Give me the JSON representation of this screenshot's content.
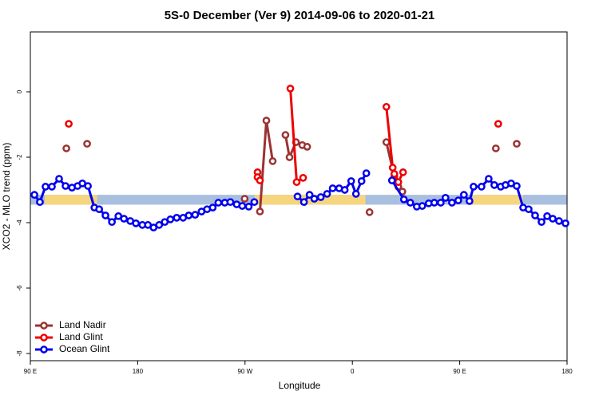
{
  "chart_data": {
    "type": "line",
    "title": "5S-0 December (Ver 9)   2014-09-06 to 2020-01-21",
    "x_label": "Longitude",
    "y_label": "XCO2 - MLO trend (ppm)",
    "xlim": [
      90,
      540
    ],
    "ylim": [
      -8.22,
      1.83
    ],
    "xticks": [
      {
        "value": 90,
        "label": "90 E"
      },
      180,
      {
        "value": 270,
        "label": "90 W"
      },
      {
        "value": 360,
        "label": "0"
      },
      {
        "value": 450,
        "label": "90 E"
      },
      {
        "value": 540,
        "label": "180"
      }
    ],
    "yticks": [
      0,
      -2,
      -4,
      -6,
      -8
    ],
    "legend": "bottom-left",
    "band": {
      "ylim": [
        -3.45,
        -3.15
      ],
      "color": "#a8bfe0",
      "land_color": "#f5d57e",
      "land_x": [
        [
          102,
          146
        ],
        [
          278,
          371
        ],
        [
          461,
          503
        ]
      ]
    },
    "series": [
      {
        "name": "Land Nadir",
        "color": "#9b3333",
        "x": [
          120.2,
          null,
          137.6,
          null,
          269.7,
          null,
          282.5,
          287.9,
          293.2,
          null,
          303.9,
          307.3,
          312.7,
          318,
          322.1,
          null,
          374.4,
          null,
          388.5,
          395.2,
          398.5,
          401.9,
          null,
          480.3,
          null,
          497.8
        ],
        "values": [
          -1.73,
          null,
          -1.59,
          null,
          -3.27,
          null,
          -3.66,
          -0.88,
          -2.12,
          null,
          -1.32,
          -2,
          -1.54,
          -1.63,
          -1.68,
          null,
          -3.68,
          null,
          -1.54,
          -2.59,
          -2.9,
          -3.05,
          null,
          -1.73,
          null,
          -1.59
        ]
      },
      {
        "name": "Land Glint",
        "color": "#ee0000",
        "x": [
          122.2,
          null,
          280.5,
          280.5,
          282.5,
          null,
          308,
          313.3,
          318.7,
          null,
          388.5,
          393.8,
          395.2,
          398.5,
          402.5,
          null,
          482.3
        ],
        "values": [
          -0.98,
          null,
          -2.46,
          -2.61,
          -2.71,
          null,
          0.1,
          -2.76,
          -2.63,
          null,
          -0.46,
          -2.32,
          -2.51,
          -2.76,
          -2.46,
          null,
          -0.98
        ]
      },
      {
        "name": "Ocean Glint",
        "color": "#0000ee",
        "x": [
          93.4,
          98,
          102.7,
          108.1,
          114.1,
          119.5,
          124.9,
          129.6,
          133.6,
          138.3,
          143.7,
          147.7,
          153,
          158.4,
          163.8,
          168.5,
          173.8,
          178.5,
          183.9,
          188.6,
          193.3,
          198,
          202.7,
          207.4,
          212.7,
          218.1,
          222.8,
          228.2,
          233.5,
          238.2,
          242.9,
          247.6,
          253,
          257.7,
          263,
          267.7,
          273.1,
          277.8,
          null,
          314,
          319.4,
          324.1,
          328.1,
          333.5,
          338.8,
          343.5,
          348.9,
          353.6,
          359,
          363,
          367.7,
          371.7,
          null,
          393.2,
          403.2,
          408.6,
          414,
          418.6,
          424,
          428.7,
          434.1,
          438.1,
          443.5,
          448.8,
          453.5,
          458.2,
          461.6,
          468.3,
          474.3,
          479,
          484.4,
          488.4,
          493.1,
          497.8,
          503.2,
          507.8,
          513.2,
          518.6,
          523.3,
          528,
          533.3,
          538.7
        ],
        "values": [
          -3.15,
          -3.37,
          -2.9,
          -2.9,
          -2.66,
          -2.88,
          -2.93,
          -2.88,
          -2.8,
          -2.88,
          -3.54,
          -3.59,
          -3.78,
          -3.98,
          -3.8,
          -3.88,
          -3.95,
          -4.02,
          -4.07,
          -4.07,
          -4.15,
          -4.07,
          -3.98,
          -3.9,
          -3.85,
          -3.85,
          -3.78,
          -3.76,
          -3.66,
          -3.59,
          -3.54,
          -3.39,
          -3.39,
          -3.37,
          -3.44,
          -3.49,
          -3.51,
          -3.37,
          null,
          -3.2,
          -3.37,
          -3.15,
          -3.27,
          -3.22,
          -3.12,
          -2.95,
          -2.95,
          -3,
          -2.73,
          -3.12,
          -2.73,
          -2.49,
          null,
          -2.71,
          -3.29,
          -3.39,
          -3.51,
          -3.49,
          -3.41,
          -3.39,
          -3.39,
          -3.24,
          -3.39,
          -3.32,
          -3.15,
          -3.34,
          -2.9,
          -2.9,
          -2.66,
          -2.85,
          -2.9,
          -2.85,
          -2.8,
          -2.88,
          -3.54,
          -3.59,
          -3.78,
          -3.98,
          -3.8,
          -3.88,
          -3.95,
          -4.02
        ]
      }
    ]
  }
}
